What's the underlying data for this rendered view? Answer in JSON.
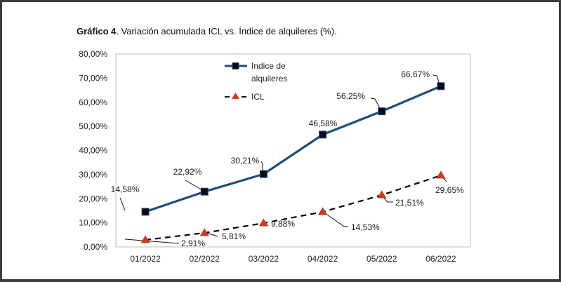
{
  "title": {
    "bold": "Gráfico 4",
    "rest": ". Variación acumulada ICL vs. Índice de alquileres (%)."
  },
  "chart_data": {
    "type": "line",
    "title": "Gráfico 4. Variación acumulada ICL vs. Índice de alquileres (%).",
    "xlabel": "",
    "ylabel": "",
    "categories": [
      "01/2022",
      "02/2022",
      "03/2022",
      "04/2022",
      "05/2022",
      "06/2022"
    ],
    "ylim": [
      0,
      80
    ],
    "yticks": [
      0,
      10,
      20,
      30,
      40,
      50,
      60,
      70,
      80
    ],
    "ytick_labels": [
      "0,00%",
      "10,00%",
      "20,00%",
      "30,00%",
      "40,00%",
      "50,00%",
      "60,00%",
      "70,00%",
      "80,00%"
    ],
    "grid": false,
    "legend_position": "top-center",
    "series": [
      {
        "name": "Indice de alquileres",
        "legend_lines": [
          "Indice de",
          "alquileres"
        ],
        "values": [
          14.58,
          22.92,
          30.21,
          46.58,
          56.25,
          66.67
        ],
        "labels": [
          "14,58%",
          "22,92%",
          "30,21%",
          "46,58%",
          "56,25%",
          "66,67%"
        ],
        "color": "#1f4e79",
        "marker": "square",
        "marker_color": "#0a0a1a",
        "line_style": "solid"
      },
      {
        "name": "ICL",
        "legend_lines": [
          "ICL"
        ],
        "values": [
          2.91,
          5.81,
          9.88,
          14.53,
          21.51,
          29.65
        ],
        "labels": [
          "2,91%",
          "5,81%",
          "9,88%",
          "14,53%",
          "21,51%",
          "29,65%"
        ],
        "color": "#000000",
        "marker": "triangle",
        "marker_color": "#d9381e",
        "line_style": "dashed"
      }
    ]
  }
}
